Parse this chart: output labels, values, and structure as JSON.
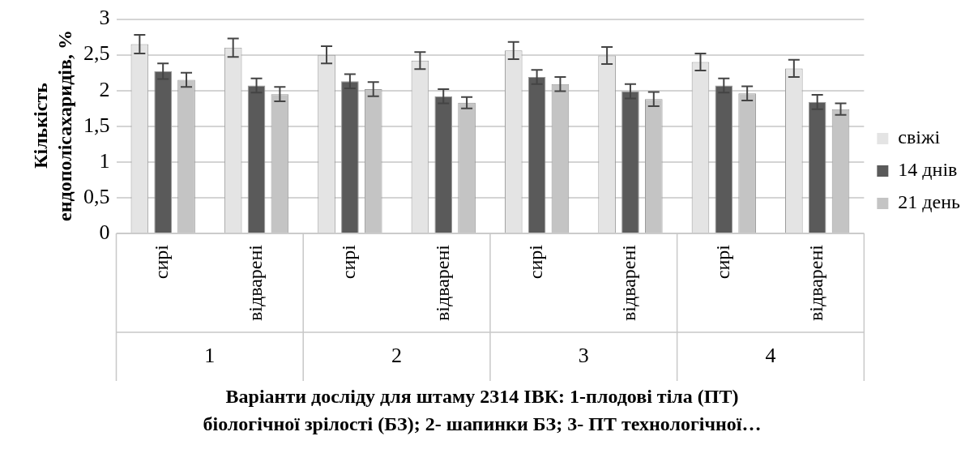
{
  "chart_data": {
    "type": "bar",
    "xlabel": "Варіанти досліду для штаму 2314 ІВК: 1-плодові тіла (ПТ) біологічної зрілості (БЗ); 2- шапинки БЗ; 3- ПТ технологічної…",
    "ylabel": "Кількість ендополісахаридів, %",
    "categories": [
      "сирі",
      "відварені",
      "сирі",
      "відварені",
      "сирі",
      "відварені",
      "сирі",
      "відварені"
    ],
    "annotations": [
      "1",
      "2",
      "3",
      "4"
    ],
    "series": [
      {
        "name": "свіжі",
        "color": "#e4e4e4",
        "values": [
          2.65,
          2.6,
          2.5,
          2.42,
          2.56,
          2.49,
          2.4,
          2.31
        ],
        "errors": [
          0.13,
          0.13,
          0.12,
          0.12,
          0.12,
          0.12,
          0.12,
          0.12
        ]
      },
      {
        "name": "14 днів",
        "color": "#5a5a5a",
        "values": [
          2.27,
          2.07,
          2.13,
          1.92,
          2.19,
          1.99,
          2.07,
          1.84
        ],
        "errors": [
          0.11,
          0.1,
          0.1,
          0.1,
          0.1,
          0.1,
          0.1,
          0.1
        ]
      },
      {
        "name": "21 день",
        "color": "#c4c4c4",
        "values": [
          2.15,
          1.95,
          2.02,
          1.83,
          2.09,
          1.88,
          1.96,
          1.74
        ],
        "errors": [
          0.1,
          0.1,
          0.1,
          0.08,
          0.1,
          0.1,
          0.1,
          0.08
        ]
      }
    ],
    "ylim": [
      0,
      3
    ],
    "yticks": [
      0,
      {
        "value": 0.5,
        "label": "0,5"
      },
      1,
      {
        "value": 1.5,
        "label": "1,5"
      },
      2,
      {
        "value": 2.5,
        "label": "2,5"
      },
      3
    ],
    "grid": "y",
    "legend": "right"
  }
}
